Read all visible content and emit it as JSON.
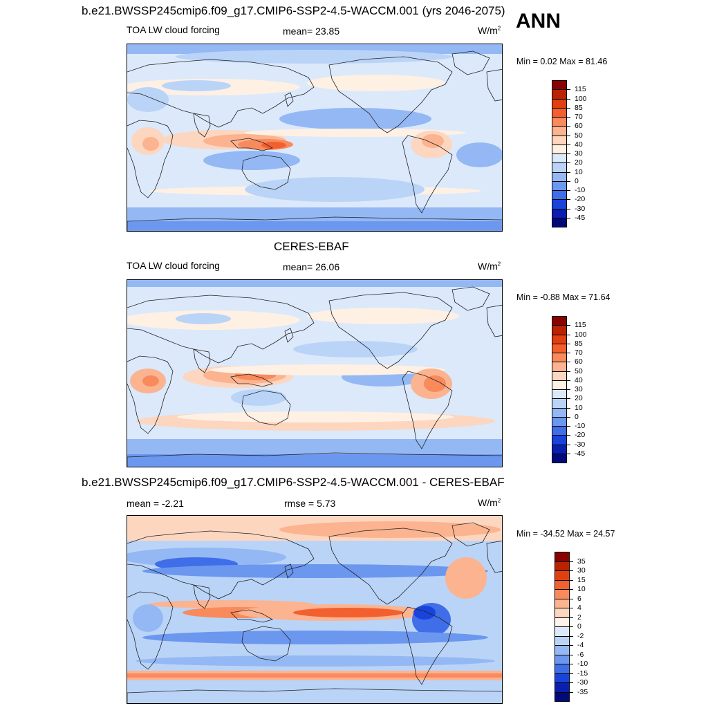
{
  "main_title": "b.e21.BWSSP245cmip6.f09_g17.CMIP6-SSP2-4.5-WACCM.001 (yrs 2046-2075)",
  "season": "ANN",
  "panels": [
    {
      "id": "model",
      "title": "",
      "left_label": "TOA LW cloud forcing",
      "center_label": "mean=  23.85",
      "units": "W/m",
      "units_sup": "2",
      "minmax": "Min =   0.02 Max =  81.46"
    },
    {
      "id": "obs",
      "title": "CERES-EBAF",
      "left_label": "TOA LW cloud forcing",
      "center_label": "mean=  26.06",
      "units": "W/m",
      "units_sup": "2",
      "minmax": "Min =  -0.88 Max =  71.64"
    },
    {
      "id": "diff",
      "title": "b.e21.BWSSP245cmip6.f09_g17.CMIP6-SSP2-4.5-WACCM.001 - CERES-EBAF",
      "left_label": "mean =  -2.21",
      "center_label": "rmse =   5.73",
      "units": "W/m",
      "units_sup": "2",
      "minmax": "Min = -34.52 Max =  24.57"
    }
  ],
  "colorbars": {
    "field": {
      "labels": [
        "115",
        "100",
        "85",
        "70",
        "60",
        "50",
        "40",
        "30",
        "20",
        "10",
        "0",
        "-10",
        "-20",
        "-30",
        "-45"
      ],
      "colors": [
        "#8b0000",
        "#bb2200",
        "#e0400f",
        "#f36030",
        "#f88a5c",
        "#fbb390",
        "#fdd6c0",
        "#fff0e4",
        "#dbe9fb",
        "#bad4f8",
        "#94b8f4",
        "#6c97ef",
        "#3f6ee8",
        "#1844db",
        "#0a1fb0",
        "#000a7a"
      ]
    },
    "diff": {
      "labels": [
        "35",
        "30",
        "15",
        "10",
        "6",
        "4",
        "2",
        "0",
        "-2",
        "-4",
        "-6",
        "-10",
        "-15",
        "-30",
        "-35"
      ],
      "colors": [
        "#8b0000",
        "#bb2200",
        "#e0400f",
        "#f36030",
        "#f88a5c",
        "#fbb390",
        "#fdd6c0",
        "#fff2ea",
        "#dbe9fb",
        "#bad4f8",
        "#94b8f4",
        "#6c97ef",
        "#3f6ee8",
        "#1844db",
        "#0a1fb0",
        "#000a7a"
      ]
    }
  },
  "map_colors": {
    "deep_red": "#e0400f",
    "red": "#f36030",
    "orange": "#f88a5c",
    "peach": "#fbb390",
    "light_peach": "#fdd6c0",
    "cream": "#fff0e4",
    "pale_blue": "#dbe9fb",
    "light_blue": "#bad4f8",
    "blue": "#94b8f4",
    "mid_blue": "#6c97ef",
    "strong_blue": "#3f6ee8",
    "dark_blue": "#1844db"
  }
}
